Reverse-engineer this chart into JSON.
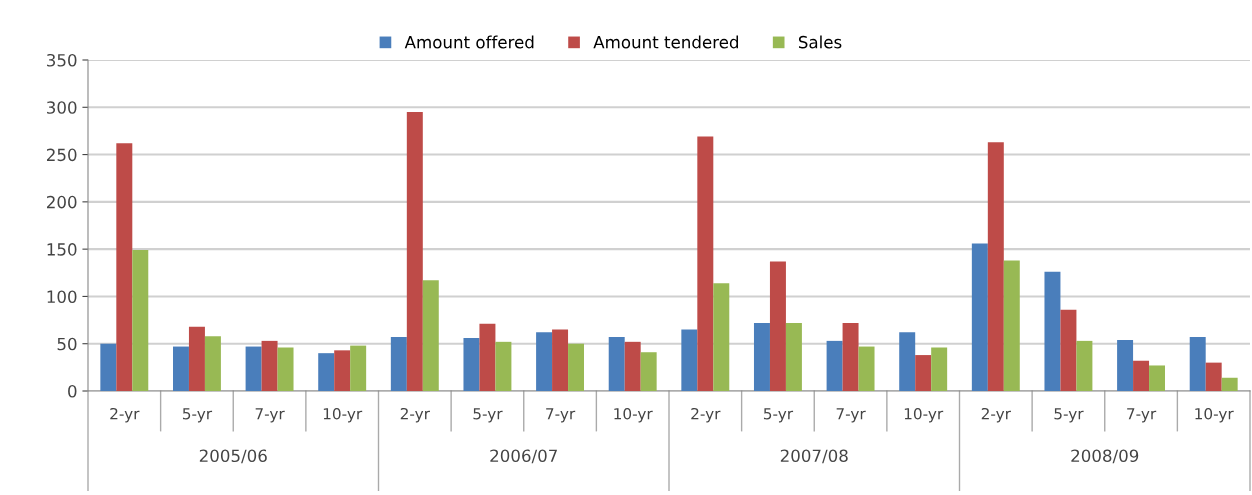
{
  "chart_data": {
    "type": "bar",
    "categories": [
      "2-yr",
      "5-yr",
      "7-yr",
      "10-yr",
      "2-yr",
      "5-yr",
      "7-yr",
      "10-yr",
      "2-yr",
      "5-yr",
      "7-yr",
      "10-yr",
      "2-yr",
      "5-yr",
      "7-yr",
      "10-yr"
    ],
    "series": [
      {
        "name": "Amount offered",
        "color": "#4a7ebb",
        "values": [
          50,
          47,
          47,
          40,
          57,
          56,
          62,
          57,
          65,
          72,
          53,
          62,
          156,
          126,
          54,
          57
        ]
      },
      {
        "name": "Amount tendered",
        "color": "#be4b48",
        "values": [
          262,
          68,
          53,
          43,
          295,
          71,
          65,
          52,
          269,
          137,
          72,
          38,
          263,
          86,
          32,
          30
        ]
      },
      {
        "name": "Sales",
        "color": "#98b954",
        "values": [
          149,
          58,
          46,
          48,
          117,
          52,
          50,
          41,
          114,
          72,
          47,
          46,
          138,
          53,
          27,
          14
        ]
      }
    ],
    "annotations": [
      "2005/06",
      "2006/07",
      "2007/08",
      "2008/09"
    ],
    "ylim": [
      0,
      350
    ],
    "yticks": [
      0,
      50,
      100,
      150,
      200,
      250,
      300,
      350
    ],
    "grid": "y",
    "legend": "top"
  }
}
